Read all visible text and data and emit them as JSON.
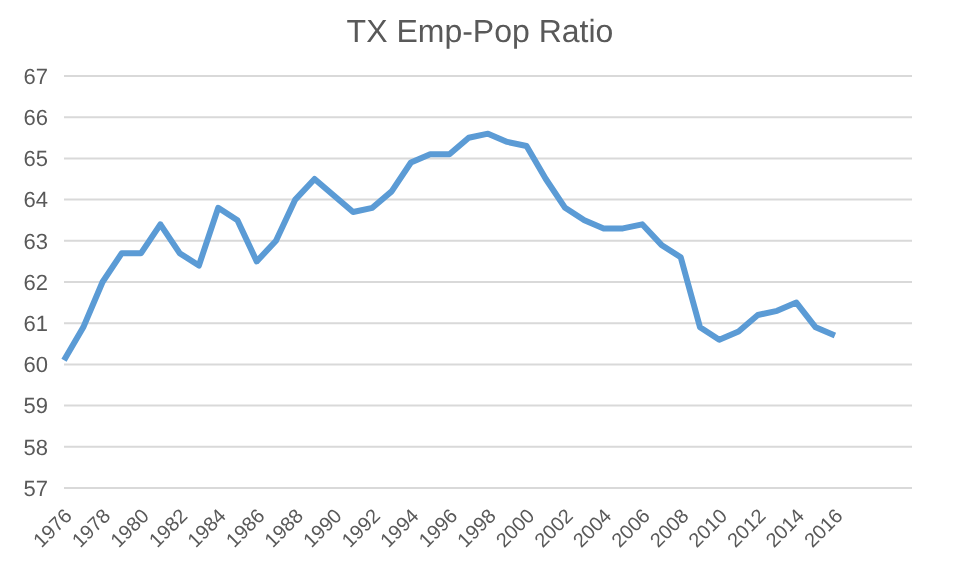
{
  "chart_data": {
    "type": "line",
    "title": "TX Emp-Pop Ratio",
    "categories": [
      "1976",
      null,
      "1978",
      null,
      "1980",
      null,
      "1982",
      null,
      "1984",
      null,
      "1986",
      null,
      "1988",
      null,
      "1990",
      null,
      "1992",
      null,
      "1994",
      null,
      "1996",
      null,
      "1998",
      null,
      "2000",
      null,
      "2002",
      null,
      "2004",
      null,
      "2006",
      null,
      "2008",
      null,
      "2010",
      null,
      "2012",
      null,
      "2014",
      null,
      "2016",
      null,
      null,
      null,
      null
    ],
    "series": [
      {
        "color": "#5b9bd5",
        "values": [
          60.1,
          60.9,
          62.0,
          62.7,
          62.7,
          63.4,
          62.7,
          62.4,
          63.8,
          63.5,
          62.5,
          63.0,
          64.0,
          64.5,
          64.1,
          63.7,
          63.8,
          64.2,
          64.9,
          65.1,
          65.1,
          65.5,
          65.6,
          65.4,
          65.3,
          64.5,
          63.8,
          63.5,
          63.3,
          63.3,
          63.4,
          62.9,
          62.6,
          60.9,
          60.6,
          60.8,
          61.2,
          61.3,
          61.5,
          60.9,
          60.7,
          null,
          null,
          null,
          null
        ]
      }
    ],
    "ylim": [
      57,
      67
    ],
    "yticks": [
      57,
      58,
      59,
      60,
      61,
      62,
      63,
      64,
      65,
      66,
      67
    ],
    "grid": "y",
    "legend": false,
    "marker": "none",
    "line_style": "solid"
  }
}
